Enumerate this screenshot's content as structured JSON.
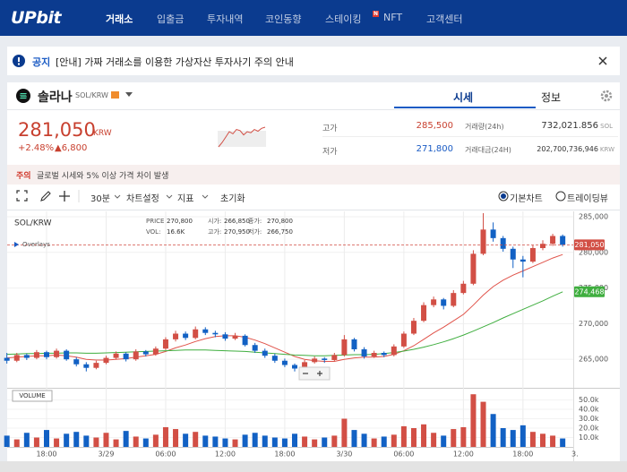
{
  "nav": {
    "logo": "UPbit",
    "items": [
      "거래소",
      "입출금",
      "투자내역",
      "코인동향",
      "스테이킹",
      "NFT",
      "고객센터"
    ],
    "badge": "N"
  },
  "notice": {
    "tag": "공지",
    "text": "[안내] 가짜 거래소를 이용한 가상자산 투자사기 주의 안내"
  },
  "coin": {
    "name": "솔라나",
    "pair": "SOL/KRW",
    "tabs": [
      "시세",
      "정보"
    ]
  },
  "ticker": {
    "price": "281,050",
    "currency": "KRW",
    "change_rate": "+2.48%",
    "change": "▲6,800",
    "sparkline": [
      272000,
      274000,
      276500,
      279000,
      278000,
      280000,
      279500,
      277500,
      279000,
      278500,
      280000,
      279200,
      280500,
      281050
    ],
    "stats": [
      {
        "label": "고가",
        "value": "285,500"
      },
      {
        "label": "저가",
        "value": "271,800"
      },
      {
        "label": "거래량(24h)",
        "value": "732,021.856",
        "unit": "SOL"
      },
      {
        "label": "거래대금(24H)",
        "value": "202,700,736,946",
        "unit": "KRW"
      }
    ]
  },
  "warning": {
    "tag": "주의",
    "text": "글로벌 시세와 5% 이상 가격 차이 발생"
  },
  "toolbar": {
    "interval": "30분",
    "menus": [
      "차트설정",
      "지표"
    ],
    "reset": "초기화",
    "views": [
      "기본차트",
      "트레이딩뷰"
    ]
  },
  "chart": {
    "type": "candlestick",
    "pair": "SOL/KRW",
    "legend": [
      {
        "label": "PRICE",
        "value": "270,800"
      },
      {
        "label": "시가:",
        "value": "266,850"
      },
      {
        "label": "종가:",
        "value": "270,800"
      },
      {
        "label": "VOL:",
        "value": "16.6K"
      },
      {
        "label": "고가:",
        "value": "270,950"
      },
      {
        "label": "저가:",
        "value": "266,750"
      }
    ],
    "overlays_label": "Overlays",
    "volume_label": "VOLUME",
    "up_color": "#d24f45",
    "down_color": "#1261c4",
    "categories": [
      null,
      null,
      null,
      null,
      "18:00",
      null,
      null,
      null,
      null,
      null,
      "3/29",
      null,
      null,
      null,
      null,
      null,
      "06:00",
      null,
      null,
      null,
      null,
      null,
      "12:00",
      null,
      null,
      null,
      null,
      null,
      "18:00",
      null,
      null,
      null,
      null,
      null,
      "3/30",
      null,
      null,
      null,
      null,
      null,
      "06:00",
      null,
      null,
      null,
      null,
      null,
      "12:00",
      null,
      null,
      null,
      null,
      null,
      "18:00",
      null,
      null,
      null,
      null
    ],
    "x_edge_label": "3.",
    "candles": [
      [
        265200,
        265900,
        264400,
        264800
      ],
      [
        264800,
        265900,
        264600,
        265600
      ],
      [
        265600,
        265800,
        264900,
        265200
      ],
      [
        265200,
        266300,
        265000,
        266000
      ],
      [
        266000,
        266200,
        265000,
        265300
      ],
      [
        265300,
        266500,
        265100,
        266200
      ],
      [
        266200,
        266400,
        264800,
        265000
      ],
      [
        265000,
        265300,
        264000,
        264300
      ],
      [
        264300,
        264600,
        263300,
        263800
      ],
      [
        263800,
        264800,
        263600,
        264500
      ],
      [
        264500,
        265500,
        264300,
        265200
      ],
      [
        265200,
        266100,
        265000,
        265800
      ],
      [
        265800,
        266000,
        264700,
        265000
      ],
      [
        265000,
        266400,
        264800,
        266100
      ],
      [
        266100,
        266300,
        265400,
        265700
      ],
      [
        265700,
        266800,
        265500,
        266500
      ],
      [
        266500,
        268100,
        266300,
        267800
      ],
      [
        267800,
        269000,
        267500,
        268600
      ],
      [
        268600,
        268900,
        267700,
        268000
      ],
      [
        268000,
        269600,
        267800,
        269200
      ],
      [
        269200,
        269500,
        268400,
        268700
      ],
      [
        268700,
        269000,
        268100,
        268500
      ],
      [
        268500,
        268800,
        267600,
        267900
      ],
      [
        267900,
        268700,
        267700,
        268300
      ],
      [
        268300,
        268500,
        266800,
        267000
      ],
      [
        267000,
        267300,
        265900,
        266200
      ],
      [
        266200,
        266500,
        265200,
        265500
      ],
      [
        265500,
        265800,
        264500,
        264800
      ],
      [
        264800,
        265100,
        263900,
        264200
      ],
      [
        264200,
        264400,
        263300,
        263700
      ],
      [
        263700,
        264900,
        263500,
        264600
      ],
      [
        264600,
        265400,
        264400,
        265100
      ],
      [
        265100,
        265300,
        264500,
        264900
      ],
      [
        264900,
        265900,
        264700,
        265600
      ],
      [
        265600,
        268400,
        265400,
        267800
      ],
      [
        267800,
        268000,
        266100,
        266400
      ],
      [
        266400,
        266700,
        265100,
        265400
      ],
      [
        265400,
        266200,
        265200,
        265900
      ],
      [
        265900,
        266100,
        265300,
        265600
      ],
      [
        265600,
        267100,
        265400,
        266800
      ],
      [
        266800,
        268900,
        266600,
        268600
      ],
      [
        268600,
        270800,
        268400,
        270400
      ],
      [
        270400,
        273000,
        270200,
        272600
      ],
      [
        272600,
        273800,
        272300,
        273400
      ],
      [
        273400,
        273600,
        272000,
        272500
      ],
      [
        272500,
        274700,
        272300,
        274300
      ],
      [
        274300,
        276000,
        274100,
        275600
      ],
      [
        275600,
        280300,
        275400,
        279800
      ],
      [
        279800,
        285500,
        279600,
        283200
      ],
      [
        283200,
        284200,
        281500,
        282000
      ],
      [
        282000,
        282300,
        280100,
        280500
      ],
      [
        280500,
        280800,
        277800,
        279000
      ],
      [
        279000,
        279500,
        276500,
        278700
      ],
      [
        278700,
        281000,
        278500,
        280600
      ],
      [
        280600,
        281700,
        280300,
        281200
      ],
      [
        281200,
        282600,
        280900,
        282300
      ],
      [
        282300,
        282500,
        280800,
        281050
      ]
    ],
    "volume": [
      12000,
      8000,
      15000,
      10000,
      18000,
      9000,
      14000,
      16000,
      12000,
      10000,
      15000,
      8000,
      17000,
      11000,
      9000,
      13000,
      21000,
      19000,
      14000,
      16000,
      12000,
      11000,
      9000,
      8000,
      13000,
      15000,
      12000,
      10000,
      9000,
      14000,
      11000,
      8000,
      10000,
      12000,
      30000,
      18000,
      14000,
      9000,
      11000,
      13000,
      22000,
      20000,
      24000,
      15000,
      12000,
      19000,
      21000,
      56000,
      48000,
      35000,
      20000,
      18000,
      23000,
      16000,
      14000,
      12000,
      9000
    ],
    "ma": [
      {
        "color": "#e0534a",
        "values": [
          265200,
          265300,
          265400,
          265500,
          265500,
          265600,
          265500,
          265300,
          265000,
          264900,
          264900,
          265000,
          265100,
          265300,
          265500,
          265700,
          266100,
          266600,
          267000,
          267500,
          267900,
          268200,
          268300,
          268300,
          268100,
          267700,
          267200,
          266600,
          266000,
          265400,
          265000,
          264800,
          264700,
          264700,
          265000,
          265200,
          265300,
          265300,
          265400,
          265700,
          266200,
          266900,
          267800,
          268700,
          269500,
          270400,
          271300,
          272600,
          274000,
          275200,
          276100,
          276800,
          277400,
          278000,
          278600,
          279200,
          279700
        ]
      },
      {
        "color": "#3fae3f",
        "values": [
          265700,
          265750,
          265800,
          265800,
          265850,
          265850,
          265900,
          265900,
          265850,
          265850,
          265900,
          265950,
          266000,
          266050,
          266100,
          266150,
          266200,
          266250,
          266300,
          266300,
          266300,
          266250,
          266200,
          266150,
          266100,
          266000,
          265900,
          265800,
          265700,
          265600,
          265550,
          265500,
          265500,
          265550,
          265600,
          265650,
          265650,
          265700,
          265800,
          265950,
          266150,
          266400,
          266700,
          267050,
          267450,
          267900,
          268400,
          268950,
          269550,
          270150,
          270800,
          271400,
          272000,
          272600,
          273200,
          273850,
          274468
        ]
      }
    ],
    "ylim": [
      261000,
      285750
    ],
    "yticks": [
      {
        "value": 265000,
        "label": "265,000"
      },
      {
        "value": 270000,
        "label": "270,000"
      },
      {
        "value": 275000,
        "label": "275,000"
      },
      {
        "value": 280000,
        "label": "280,000"
      },
      {
        "value": 285000,
        "label": "285,000"
      }
    ],
    "last_price": {
      "value": 281050,
      "label": "281,050"
    },
    "ma_last": {
      "value": 274468,
      "label": "274,468"
    },
    "volume_ylim": [
      0,
      60000
    ],
    "volume_yticks": [
      {
        "value": 10000,
        "label": "10.0k"
      },
      {
        "value": 20000,
        "label": "20.0k"
      },
      {
        "value": 30000,
        "label": "30.0k"
      },
      {
        "value": 40000,
        "label": "40.0k"
      },
      {
        "value": 50000,
        "label": "50.0k"
      }
    ]
  }
}
